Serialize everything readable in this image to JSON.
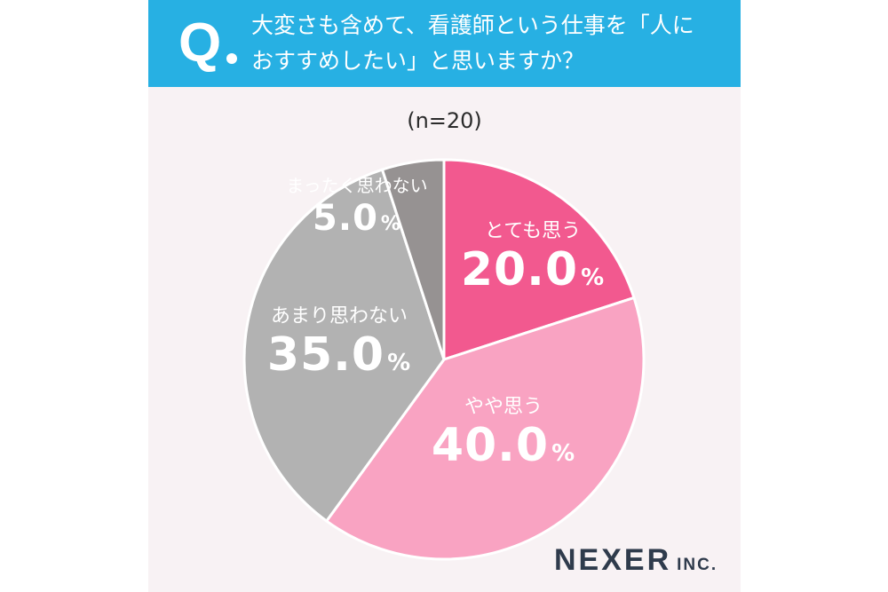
{
  "header": {
    "q_mark": "Q",
    "question_line1": "大変さも含めて、看護師という仕事を「人に",
    "question_line2": "おすすめしたい」と思いますか？"
  },
  "chart_data": {
    "type": "pie",
    "title": "",
    "sample_size_label": "(n=20)",
    "unit": "%",
    "slices": [
      {
        "label": "とても思う",
        "value": 20.0,
        "value_text": "20.0",
        "color": "#f2598f"
      },
      {
        "label": "やや思う",
        "value": 40.0,
        "value_text": "40.0",
        "color": "#f9a3c2"
      },
      {
        "label": "あまり思わない",
        "value": 35.0,
        "value_text": "35.0",
        "color": "#b2b2b2"
      },
      {
        "label": "まったく思わない",
        "value": 5.0,
        "value_text": "5.0",
        "color": "#969292"
      }
    ]
  },
  "footer": {
    "logo_main": "NEXER",
    "logo_sub": "INC."
  }
}
